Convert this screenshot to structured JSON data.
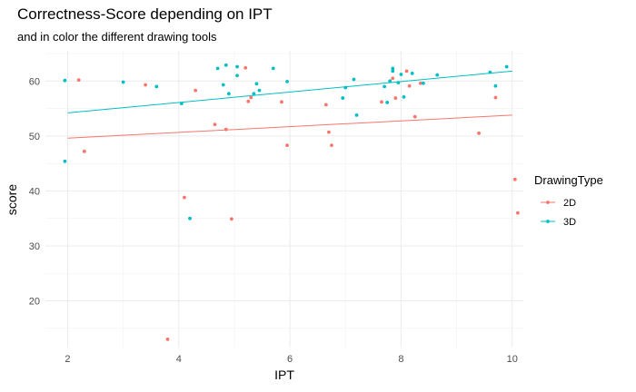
{
  "chart_data": {
    "type": "scatter",
    "title": "Correctness-Score depending on IPT",
    "subtitle": "and in color the different drawing tools",
    "xlabel": "IPT",
    "ylabel": "score",
    "xlim": [
      1.6,
      10.2
    ],
    "ylim": [
      11.5,
      65.5
    ],
    "xticks": [
      2,
      4,
      6,
      8,
      10
    ],
    "yticks": [
      20,
      30,
      40,
      50,
      60
    ],
    "grid": true,
    "legend": {
      "title": "DrawingType",
      "position": "right"
    },
    "series": [
      {
        "name": "2D",
        "color": "#F8766D",
        "points": [
          [
            2.2,
            60.2
          ],
          [
            2.3,
            47.2
          ],
          [
            3.4,
            59.3
          ],
          [
            3.8,
            13.0
          ],
          [
            4.1,
            38.8
          ],
          [
            4.3,
            58.3
          ],
          [
            4.65,
            52.1
          ],
          [
            4.85,
            51.2
          ],
          [
            4.95,
            34.9
          ],
          [
            5.2,
            62.4
          ],
          [
            5.25,
            56.3
          ],
          [
            5.3,
            57.0
          ],
          [
            5.85,
            56.2
          ],
          [
            5.95,
            48.3
          ],
          [
            6.65,
            55.7
          ],
          [
            6.7,
            50.7
          ],
          [
            6.75,
            48.3
          ],
          [
            7.65,
            56.2
          ],
          [
            7.85,
            60.5
          ],
          [
            7.9,
            56.9
          ],
          [
            8.1,
            61.8
          ],
          [
            8.15,
            59.1
          ],
          [
            8.25,
            53.5
          ],
          [
            8.35,
            59.6
          ],
          [
            9.4,
            50.5
          ],
          [
            9.7,
            57.0
          ],
          [
            10.05,
            42.1
          ],
          [
            10.1,
            36.0
          ]
        ],
        "trend": [
          [
            2.0,
            49.6
          ],
          [
            10.0,
            53.8
          ]
        ]
      },
      {
        "name": "3D",
        "color": "#00BFC4",
        "points": [
          [
            1.95,
            60.1
          ],
          [
            1.95,
            45.4
          ],
          [
            3.0,
            59.8
          ],
          [
            3.6,
            59.0
          ],
          [
            4.05,
            55.9
          ],
          [
            4.2,
            35.0
          ],
          [
            4.7,
            62.3
          ],
          [
            4.8,
            59.3
          ],
          [
            4.85,
            62.9
          ],
          [
            4.9,
            57.7
          ],
          [
            5.05,
            61.0
          ],
          [
            5.05,
            62.6
          ],
          [
            5.4,
            59.5
          ],
          [
            5.45,
            58.3
          ],
          [
            5.35,
            57.7
          ],
          [
            5.7,
            62.3
          ],
          [
            5.95,
            59.9
          ],
          [
            6.95,
            56.9
          ],
          [
            7.0,
            58.8
          ],
          [
            7.15,
            60.3
          ],
          [
            7.2,
            53.8
          ],
          [
            7.7,
            59.0
          ],
          [
            7.75,
            56.1
          ],
          [
            7.8,
            60.0
          ],
          [
            7.85,
            62.3
          ],
          [
            7.85,
            61.8
          ],
          [
            7.95,
            59.7
          ],
          [
            8.0,
            61.2
          ],
          [
            8.05,
            57.1
          ],
          [
            8.2,
            61.4
          ],
          [
            8.4,
            59.6
          ],
          [
            8.65,
            61.1
          ],
          [
            9.6,
            61.6
          ],
          [
            9.7,
            59.1
          ],
          [
            9.9,
            62.6
          ]
        ],
        "trend": [
          [
            2.0,
            54.2
          ],
          [
            10.0,
            61.8
          ]
        ]
      }
    ]
  }
}
